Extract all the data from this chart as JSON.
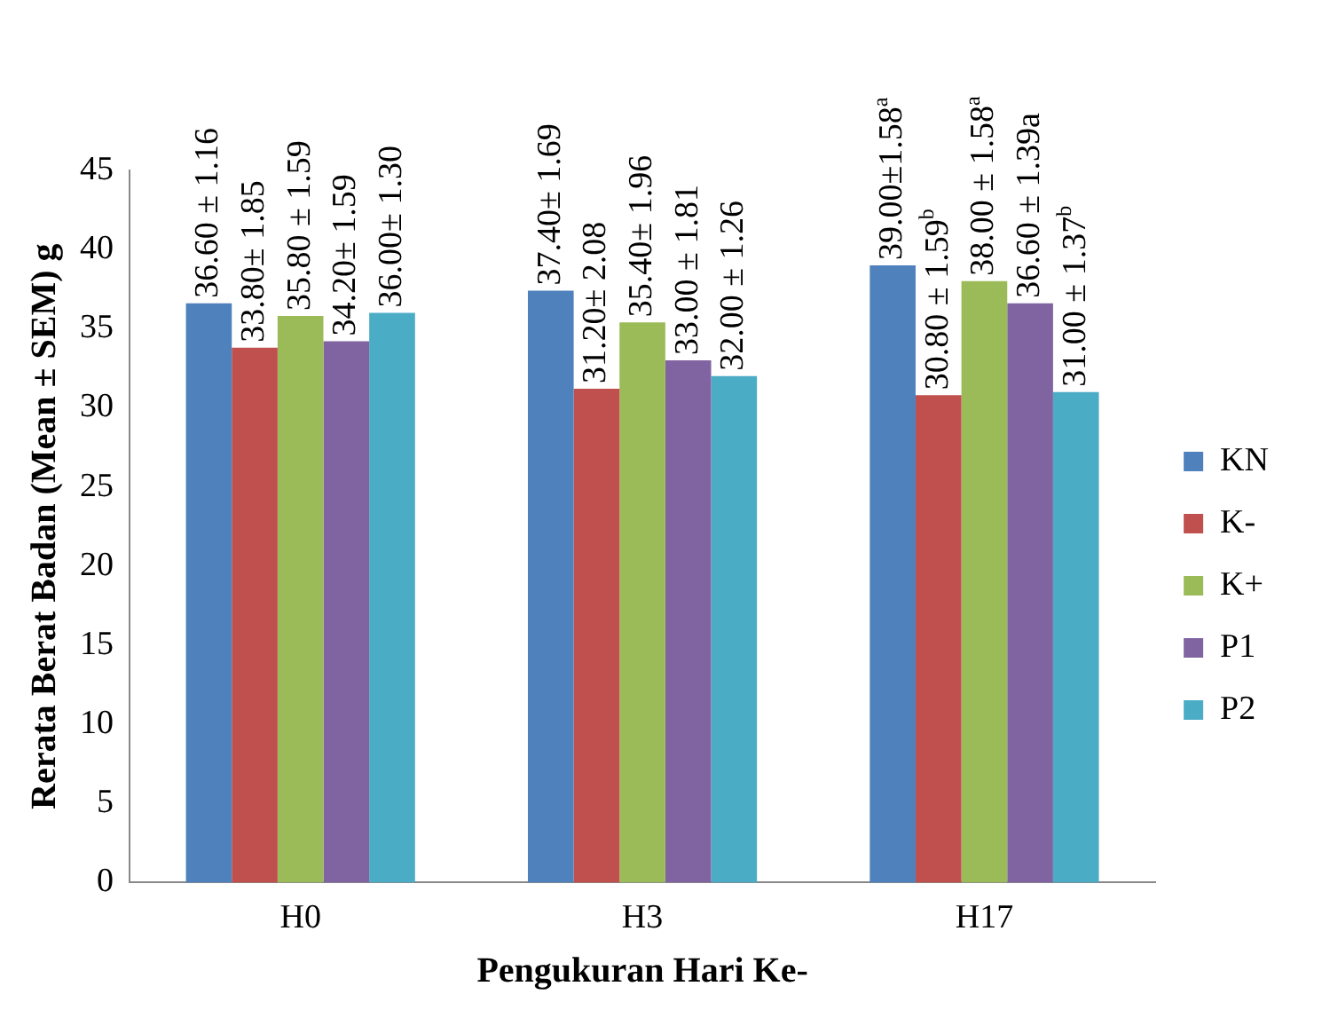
{
  "chart_data": {
    "type": "bar",
    "xlabel": "Pengukuran Hari Ke-",
    "ylabel": "Rerata Berat Badan (Mean ± SEM) g",
    "categories": [
      "H0",
      "H3",
      "H17"
    ],
    "series": [
      {
        "name": "KN",
        "color": "#4f81bd",
        "values": [
          36.6,
          37.4,
          39.0
        ],
        "value_labels": [
          "36.60 ± 1.16",
          "37.40± 1.69",
          "39.00±1.58$^{a}$"
        ]
      },
      {
        "name": "K-",
        "color": "#c0504d",
        "values": [
          33.8,
          31.2,
          30.8
        ],
        "value_labels": [
          "33.80± 1.85",
          "31.20± 2.08",
          "30.80 ± 1.59$^{b}$"
        ]
      },
      {
        "name": "K+",
        "color": "#9bbb59",
        "values": [
          35.8,
          35.4,
          38.0
        ],
        "value_labels": [
          "35.80 ± 1.59",
          "35.40± 1.96",
          "38.00 ± 1.58$^{a}$"
        ]
      },
      {
        "name": "P1",
        "color": "#8064a2",
        "values": [
          34.2,
          33.0,
          36.6
        ],
        "value_labels": [
          "34.20± 1.59",
          "33.00 ± 1.81",
          "36.60 ± 1.39a"
        ]
      },
      {
        "name": "P2",
        "color": "#4bacc6",
        "values": [
          36.0,
          32.0,
          31.0
        ],
        "value_labels": [
          "36.00± 1.30",
          "32.00 ± 1.26",
          "31.00 ± 1.37$^{b}$"
        ]
      }
    ],
    "ylim": [
      0,
      45
    ],
    "yticks": [
      0,
      5,
      10,
      15,
      20,
      25,
      30,
      35,
      40,
      45
    ],
    "grid": false,
    "legend": "right"
  }
}
